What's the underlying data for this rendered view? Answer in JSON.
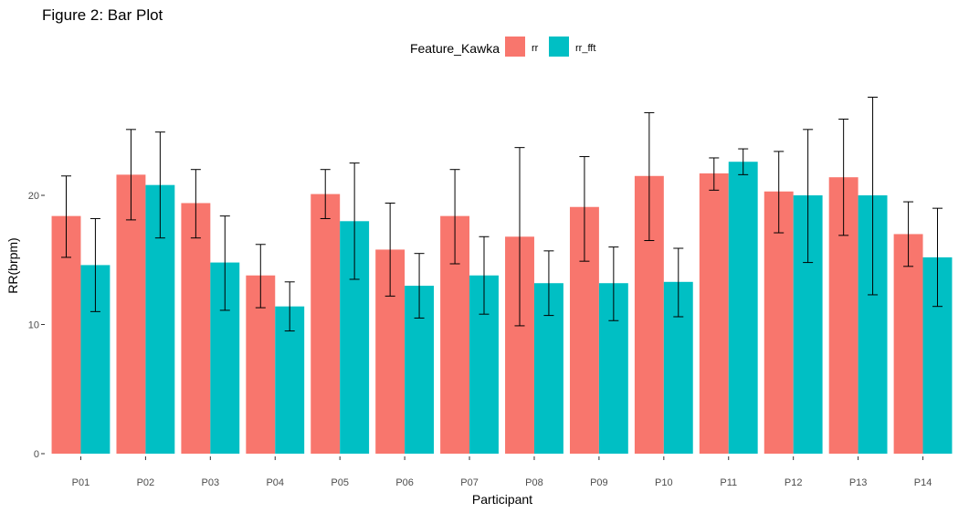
{
  "chart_data": {
    "type": "bar",
    "title": "Figure 2: Bar Plot",
    "xlabel": "Participant",
    "ylabel": "RR(brpm)",
    "categories": [
      "P01",
      "P02",
      "P03",
      "P04",
      "P05",
      "P06",
      "P07",
      "P08",
      "P09",
      "P10",
      "P11",
      "P12",
      "P13",
      "P14"
    ],
    "ylim": [
      0,
      28.5
    ],
    "yticks": [
      0,
      10,
      20
    ],
    "legend": {
      "title": "Feature_Kawka",
      "position": "top"
    },
    "grid": false,
    "error_bars": true,
    "series": [
      {
        "name": "rr",
        "color": "#F8766D",
        "values": [
          18.4,
          21.6,
          19.4,
          13.8,
          20.1,
          15.8,
          18.4,
          16.8,
          19.1,
          21.5,
          21.7,
          20.3,
          21.4,
          17.0
        ],
        "err_low": [
          15.2,
          18.1,
          16.7,
          11.3,
          18.2,
          12.2,
          14.7,
          9.9,
          14.9,
          16.5,
          20.4,
          17.1,
          16.9,
          14.5
        ],
        "err_high": [
          21.5,
          25.1,
          22.0,
          16.2,
          22.0,
          19.4,
          22.0,
          23.7,
          23.0,
          26.4,
          22.9,
          23.4,
          25.9,
          19.5
        ]
      },
      {
        "name": "rr_fft",
        "color": "#00BFC4",
        "values": [
          14.6,
          20.8,
          14.8,
          11.4,
          18.0,
          13.0,
          13.8,
          13.2,
          13.2,
          13.3,
          22.6,
          20.0,
          20.0,
          15.2
        ],
        "err_low": [
          11.0,
          16.7,
          11.1,
          9.5,
          13.5,
          10.5,
          10.8,
          10.7,
          10.3,
          10.6,
          21.6,
          14.8,
          12.3,
          11.4
        ],
        "err_high": [
          18.2,
          24.9,
          18.4,
          13.3,
          22.5,
          15.5,
          16.8,
          15.7,
          16.0,
          15.9,
          23.6,
          25.1,
          27.6,
          19.0
        ]
      }
    ]
  }
}
